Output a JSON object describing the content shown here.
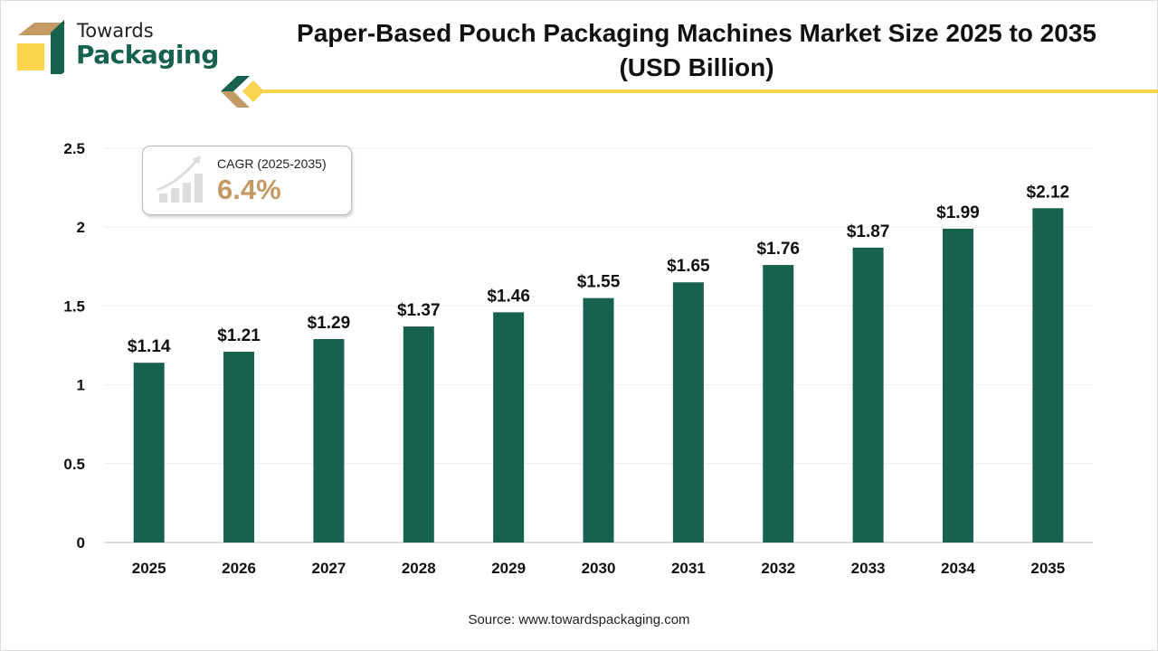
{
  "brand": {
    "line1": "Towards",
    "line2": "Packaging"
  },
  "title": "Paper-Based Pouch Packaging Machines Market Size 2025 to 2035 (USD Billion)",
  "cagr": {
    "label": "CAGR (2025-2035)",
    "value": "6.4%",
    "icon": "growth-chart-icon"
  },
  "source": "Source: www.towardspackaging.com",
  "colors": {
    "bar": "#17614f",
    "accent_yellow": "#fcd34d",
    "accent_tan": "#c49a64"
  },
  "chart_data": {
    "type": "bar",
    "title": "Paper-Based Pouch Packaging Machines Market Size 2025 to 2035 (USD Billion)",
    "categories": [
      "2025",
      "2026",
      "2027",
      "2028",
      "2029",
      "2030",
      "2031",
      "2032",
      "2033",
      "2034",
      "2035"
    ],
    "values": [
      1.14,
      1.21,
      1.29,
      1.37,
      1.46,
      1.55,
      1.65,
      1.76,
      1.87,
      1.99,
      2.12
    ],
    "data_labels": [
      "$1.14",
      "$1.21",
      "$1.29",
      "$1.37",
      "$1.46",
      "$1.55",
      "$1.65",
      "$1.76",
      "$1.87",
      "$1.99",
      "$2.12"
    ],
    "yticks": [
      "0",
      "0.5",
      "1",
      "1.5",
      "2",
      "2.5"
    ],
    "ylim": [
      0,
      2.5
    ],
    "xlabel": "",
    "ylabel": "",
    "grid": true
  }
}
